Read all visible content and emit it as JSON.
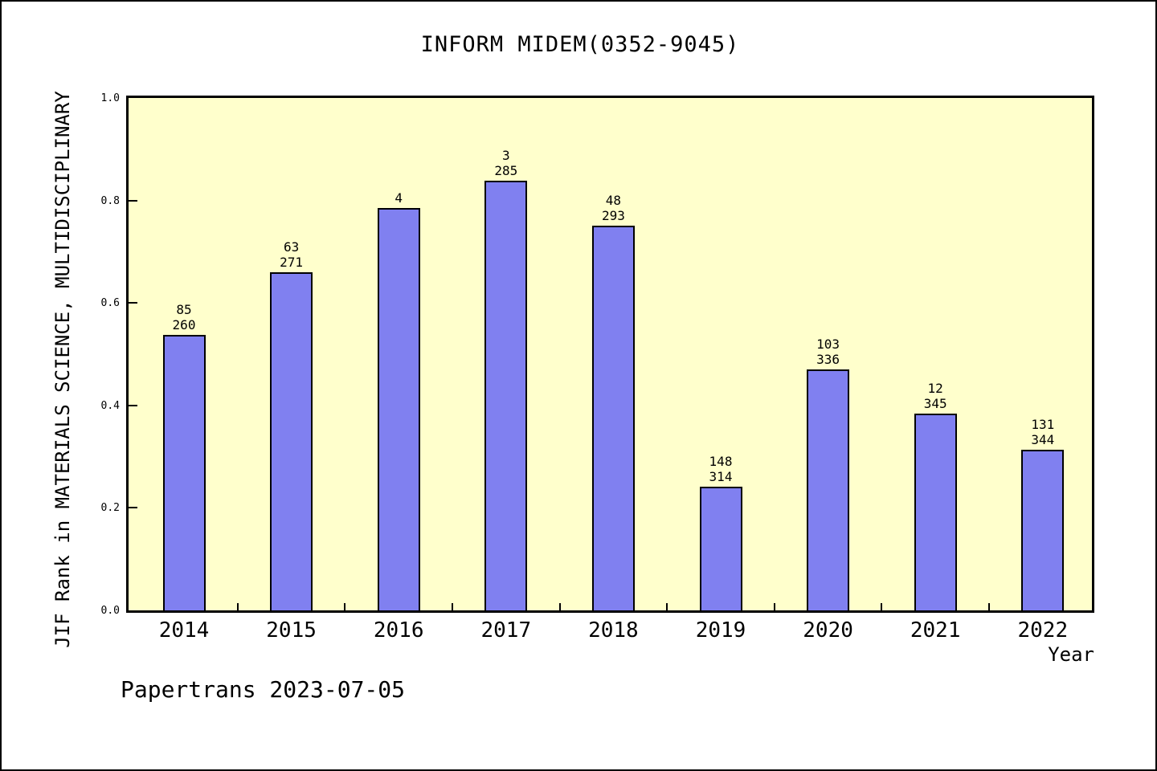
{
  "title": "INFORM MIDEM(0352-9045)",
  "footer": "Papertrans 2023-07-05",
  "chart_data": {
    "type": "bar",
    "title": "INFORM MIDEM(0352-9045)",
    "xlabel": "Year",
    "ylabel": "JIF Rank in MATERIALS SCIENCE, MULTIDISCIPLINARY",
    "ylim": [
      0.0,
      1.0
    ],
    "yticks": [
      "0.0",
      "0.2",
      "0.4",
      "0.6",
      "0.8",
      "1.0"
    ],
    "grid": false,
    "legend": "none",
    "plot_bg": "#ffffcc",
    "bar_color": "#8080f0",
    "bar_border_color": "#000000",
    "categories": [
      "2014",
      "2015",
      "2016",
      "2017",
      "2018",
      "2019",
      "2020",
      "2021",
      "2022"
    ],
    "values": [
      0.537,
      0.66,
      0.786,
      0.838,
      0.75,
      0.241,
      0.47,
      0.384,
      0.314
    ],
    "bar_labels": [
      [
        "85",
        "260"
      ],
      [
        "63",
        "271"
      ],
      [
        "4",
        ""
      ],
      [
        "3",
        "285"
      ],
      [
        "48",
        "293"
      ],
      [
        "148",
        "314"
      ],
      [
        "103",
        "336"
      ],
      [
        "12",
        "345"
      ],
      [
        "131",
        "344"
      ]
    ]
  }
}
